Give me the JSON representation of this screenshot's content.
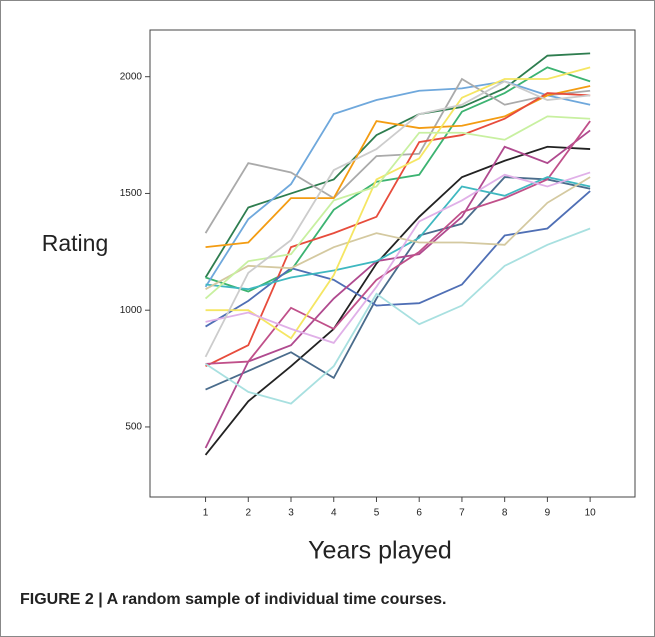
{
  "chart_data": {
    "type": "line",
    "x": [
      1,
      2,
      3,
      4,
      5,
      6,
      7,
      8,
      9,
      10
    ],
    "xlim": [
      -0.3,
      11.05
    ],
    "xticks": [
      1,
      2,
      3,
      4,
      5,
      6,
      7,
      8,
      9,
      10
    ],
    "ylim": [
      200,
      2200
    ],
    "yticks": [
      500,
      1000,
      1500,
      2000
    ],
    "x_label": "Years played",
    "y_label": "Rating",
    "caption": "FIGURE 2 | A random sample of individual time courses.",
    "series": [
      {
        "color": "#2e7d4f",
        "values": [
          1140,
          1440,
          1500,
          1560,
          1750,
          1840,
          1870,
          1950,
          2090,
          2100
        ]
      },
      {
        "color": "#3cb371",
        "values": [
          1140,
          1080,
          1170,
          1430,
          1550,
          1580,
          1850,
          1930,
          2040,
          1980
        ]
      },
      {
        "color": "#6fa8dc",
        "values": [
          1100,
          1390,
          1540,
          1840,
          1900,
          1940,
          1950,
          1980,
          1920,
          1880
        ]
      },
      {
        "color": "#aaaaaa",
        "values": [
          1330,
          1630,
          1590,
          1480,
          1660,
          1670,
          1990,
          1880,
          1920,
          1940
        ]
      },
      {
        "color": "#f39c12",
        "values": [
          1270,
          1290,
          1480,
          1480,
          1810,
          1780,
          1790,
          1830,
          1920,
          1960
        ]
      },
      {
        "color": "#e74c3c",
        "values": [
          760,
          850,
          1270,
          1330,
          1400,
          1720,
          1750,
          1820,
          1930,
          1920
        ]
      },
      {
        "color": "#222222",
        "values": [
          380,
          610,
          760,
          920,
          1200,
          1400,
          1570,
          1640,
          1700,
          1690
        ]
      },
      {
        "color": "#4a6c8c",
        "values": [
          660,
          740,
          820,
          710,
          1050,
          1320,
          1370,
          1570,
          1560,
          1520
        ]
      },
      {
        "color": "#4f6fb5",
        "values": [
          930,
          1040,
          1180,
          1130,
          1020,
          1030,
          1110,
          1320,
          1350,
          1510
        ]
      },
      {
        "color": "#b04a8f",
        "values": [
          410,
          780,
          850,
          1050,
          1210,
          1240,
          1400,
          1700,
          1630,
          1770
        ]
      },
      {
        "color": "#c0508a",
        "values": [
          770,
          780,
          1010,
          920,
          1130,
          1250,
          1420,
          1480,
          1560,
          1810
        ]
      },
      {
        "color": "#3fb8c0",
        "values": [
          1110,
          1090,
          1140,
          1170,
          1210,
          1310,
          1530,
          1490,
          1570,
          1530
        ]
      },
      {
        "color": "#a8e0e0",
        "values": [
          770,
          650,
          600,
          760,
          1070,
          940,
          1020,
          1190,
          1280,
          1350
        ]
      },
      {
        "color": "#d4c9a0",
        "values": [
          1090,
          1190,
          1180,
          1270,
          1330,
          1290,
          1290,
          1280,
          1460,
          1570
        ]
      },
      {
        "color": "#f5e663",
        "values": [
          1000,
          1000,
          880,
          1150,
          1560,
          1650,
          1910,
          1990,
          1990,
          2040
        ]
      },
      {
        "color": "#c8f0a0",
        "values": [
          1050,
          1210,
          1240,
          1470,
          1530,
          1760,
          1760,
          1730,
          1830,
          1820
        ]
      },
      {
        "color": "#e0b0e8",
        "values": [
          950,
          990,
          920,
          860,
          1100,
          1380,
          1470,
          1580,
          1530,
          1590
        ]
      },
      {
        "color": "#cccccc",
        "values": [
          800,
          1160,
          1300,
          1600,
          1690,
          1840,
          1880,
          1980,
          1900,
          1920
        ]
      }
    ]
  }
}
